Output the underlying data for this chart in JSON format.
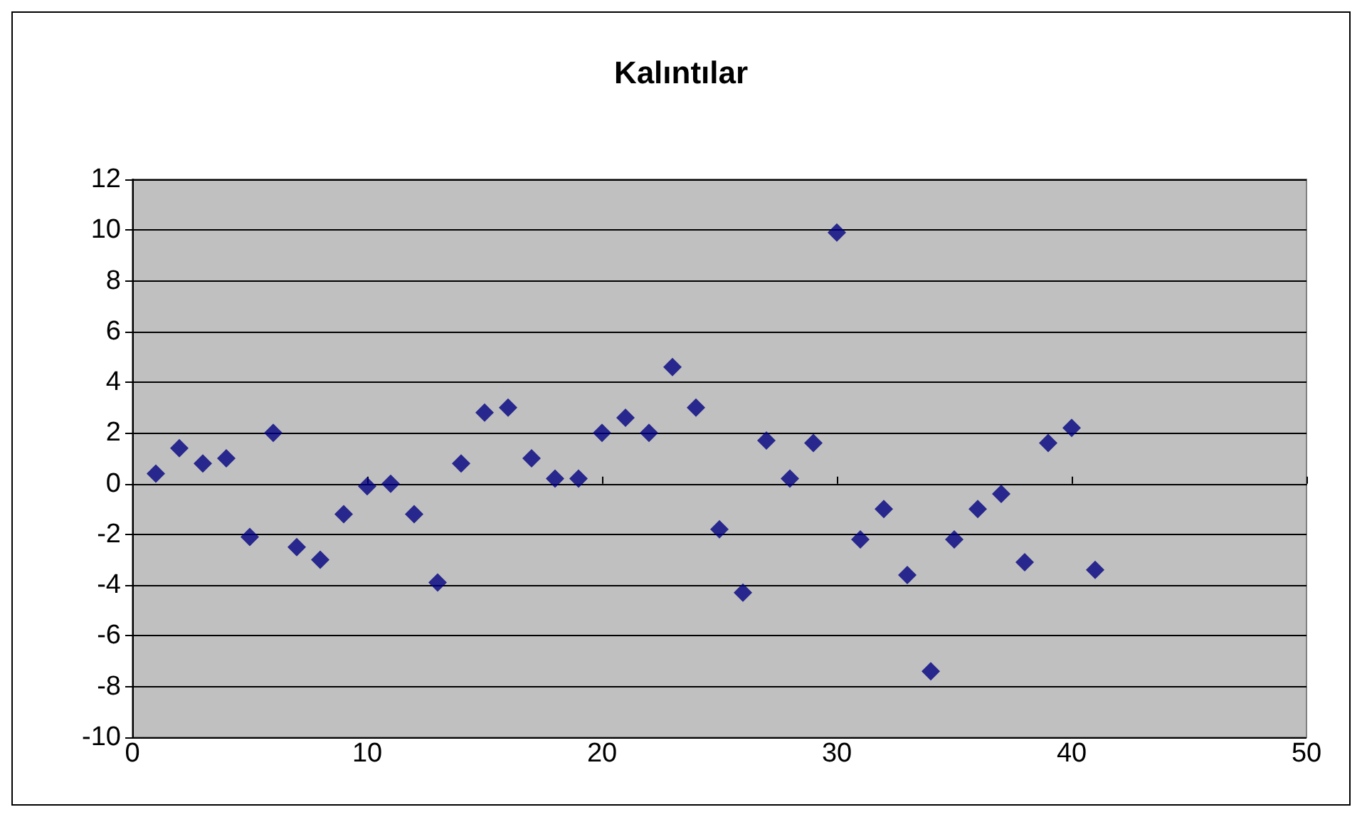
{
  "chart_data": {
    "type": "scatter",
    "title": "Kalıntılar",
    "x": [
      1,
      2,
      3,
      4,
      5,
      6,
      7,
      8,
      9,
      10,
      11,
      12,
      13,
      14,
      15,
      16,
      17,
      18,
      19,
      20,
      21,
      22,
      23,
      24,
      25,
      26,
      27,
      28,
      29,
      30,
      31,
      32,
      33,
      34,
      35,
      36,
      37,
      38,
      39,
      40,
      41
    ],
    "values": [
      0.4,
      1.4,
      0.8,
      1.0,
      -2.1,
      2.0,
      -2.5,
      -3.0,
      -1.2,
      -0.1,
      0,
      -1.2,
      -3.9,
      0.8,
      2.8,
      3.0,
      1.0,
      0.2,
      0.2,
      2.0,
      2.6,
      2.0,
      4.6,
      3.0,
      -1.8,
      -4.3,
      1.7,
      0.2,
      1.6,
      9.9,
      -2.2,
      -1.0,
      -3.6,
      -7.4,
      -2.2,
      -1.0,
      -0.4,
      -3.1,
      1.6,
      2.2,
      -3.4
    ],
    "color": "#000080",
    "marker": "diamond",
    "xlim": [
      0,
      50
    ],
    "xticks": [
      0,
      10,
      20,
      30,
      40,
      50
    ],
    "ylim": [
      -10,
      12
    ],
    "yticks": [
      -10,
      -8,
      -6,
      -4,
      -2,
      0,
      2,
      4,
      6,
      8,
      10,
      12
    ],
    "grid": "y"
  }
}
